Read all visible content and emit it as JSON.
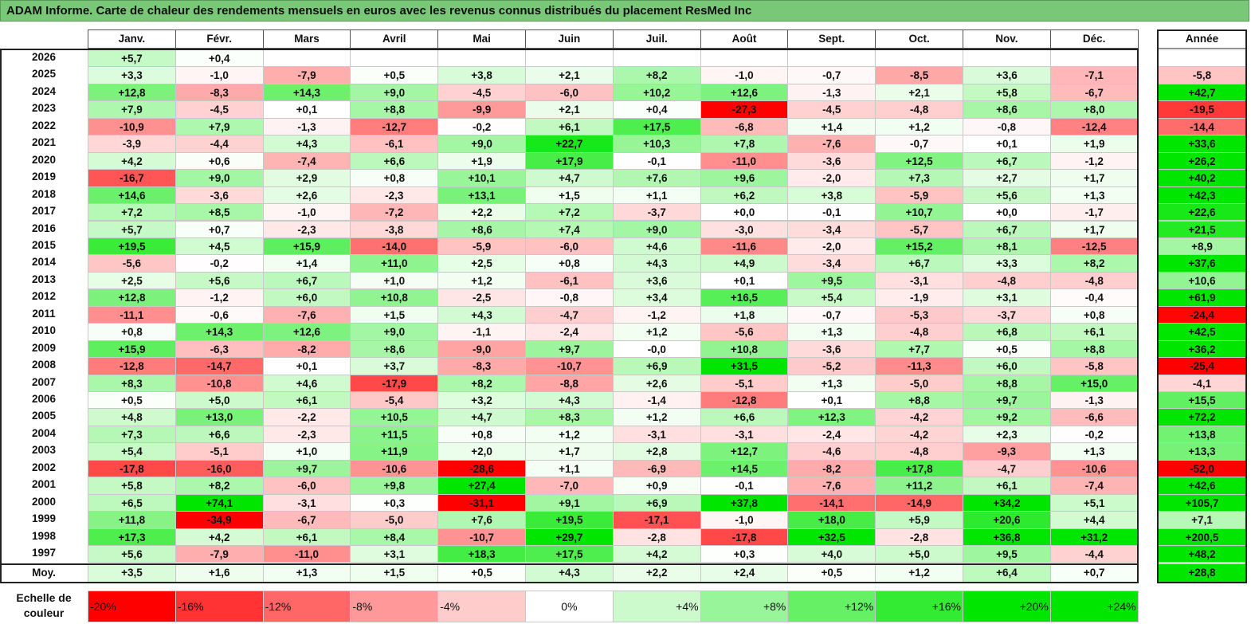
{
  "title": "ADAM Informe. Carte de chaleur des rendements mensuels en euros avec les revenus connus distribués du placement ResMed Inc",
  "chart_data": {
    "type": "heatmap",
    "columns": [
      "Janv.",
      "Févr.",
      "Mars",
      "Avril",
      "Mai",
      "Juin",
      "Juil.",
      "Août",
      "Sept.",
      "Oct.",
      "Nov.",
      "Déc."
    ],
    "year_header": "Année",
    "rows": [
      {
        "label": "2026",
        "months": [
          "+5,7",
          "+0,4",
          "",
          "",
          "",
          "",
          "",
          "",
          "",
          "",
          "",
          ""
        ],
        "year": ""
      },
      {
        "label": "2025",
        "months": [
          "+3,3",
          "-1,0",
          "-7,9",
          "+0,5",
          "+3,8",
          "+2,1",
          "+8,2",
          "-1,0",
          "-0,7",
          "-8,5",
          "+3,6",
          "-7,1"
        ],
        "year": "-5,8"
      },
      {
        "label": "2024",
        "months": [
          "+12,8",
          "-8,3",
          "+14,3",
          "+9,0",
          "-4,5",
          "-6,0",
          "+10,2",
          "+12,6",
          "-1,3",
          "+2,1",
          "+5,8",
          "-6,7"
        ],
        "year": "+42,7"
      },
      {
        "label": "2023",
        "months": [
          "+7,9",
          "-4,5",
          "+0,1",
          "+8,8",
          "-9,9",
          "+2,1",
          "+0,4",
          "-27,3",
          "-4,5",
          "-4,8",
          "+8,6",
          "+8,0"
        ],
        "year": "-19,5"
      },
      {
        "label": "2022",
        "months": [
          "-10,9",
          "+7,9",
          "-1,3",
          "-12,7",
          "-0,2",
          "+6,1",
          "+17,5",
          "-6,8",
          "+1,4",
          "+1,2",
          "-0,8",
          "-12,4"
        ],
        "year": "-14,4"
      },
      {
        "label": "2021",
        "months": [
          "-3,9",
          "-4,4",
          "+4,3",
          "-6,1",
          "+9,0",
          "+22,7",
          "+10,3",
          "+7,8",
          "-7,6",
          "-0,7",
          "+0,1",
          "+1,9"
        ],
        "year": "+33,6"
      },
      {
        "label": "2020",
        "months": [
          "+4,2",
          "+0,6",
          "-7,4",
          "+6,6",
          "+1,9",
          "+17,9",
          "-0,1",
          "-11,0",
          "-3,6",
          "+12,5",
          "+6,7",
          "-1,2"
        ],
        "year": "+26,2"
      },
      {
        "label": "2019",
        "months": [
          "-16,7",
          "+9,0",
          "+2,9",
          "+0,8",
          "+10,1",
          "+4,7",
          "+7,6",
          "+9,6",
          "-2,0",
          "+7,3",
          "+2,7",
          "+1,7"
        ],
        "year": "+40,2"
      },
      {
        "label": "2018",
        "months": [
          "+14,6",
          "-3,6",
          "+2,6",
          "-2,3",
          "+13,1",
          "+1,5",
          "+1,1",
          "+6,2",
          "+3,8",
          "-5,9",
          "+5,6",
          "+1,3"
        ],
        "year": "+42,3"
      },
      {
        "label": "2017",
        "months": [
          "+7,2",
          "+8,5",
          "-1,0",
          "-7,2",
          "+2,2",
          "+7,2",
          "-3,7",
          "+0,0",
          "-0,1",
          "+10,7",
          "+0,0",
          "-1,7"
        ],
        "year": "+22,6"
      },
      {
        "label": "2016",
        "months": [
          "+5,7",
          "+0,7",
          "-2,3",
          "-3,8",
          "+8,6",
          "+7,4",
          "+9,0",
          "-3,0",
          "-3,4",
          "-5,7",
          "+6,7",
          "+1,7"
        ],
        "year": "+21,5"
      },
      {
        "label": "2015",
        "months": [
          "+19,5",
          "+4,5",
          "+15,9",
          "-14,0",
          "-5,9",
          "-6,0",
          "+4,6",
          "-11,6",
          "-2,0",
          "+15,2",
          "+8,1",
          "-12,5"
        ],
        "year": "+8,9"
      },
      {
        "label": "2014",
        "months": [
          "-5,6",
          "-0,2",
          "+1,4",
          "+11,0",
          "+2,5",
          "+0,8",
          "+4,3",
          "+4,9",
          "-3,4",
          "+6,7",
          "+3,3",
          "+8,2"
        ],
        "year": "+37,6"
      },
      {
        "label": "2013",
        "months": [
          "+2,5",
          "+5,6",
          "+6,7",
          "+1,0",
          "+1,2",
          "-6,1",
          "+3,6",
          "+0,1",
          "+9,5",
          "-3,1",
          "-4,8",
          "-4,8"
        ],
        "year": "+10,6"
      },
      {
        "label": "2012",
        "months": [
          "+12,8",
          "-1,2",
          "+6,0",
          "+10,8",
          "-2,5",
          "-0,8",
          "+3,4",
          "+16,5",
          "+5,4",
          "-1,9",
          "+3,1",
          "-0,4"
        ],
        "year": "+61,9"
      },
      {
        "label": "2011",
        "months": [
          "-11,1",
          "-0,6",
          "-7,6",
          "+1,5",
          "+4,3",
          "-4,7",
          "-1,2",
          "+1,8",
          "-0,7",
          "-5,3",
          "-3,7",
          "+0,8"
        ],
        "year": "-24,4"
      },
      {
        "label": "2010",
        "months": [
          "+0,8",
          "+14,3",
          "+12,6",
          "+9,0",
          "-1,1",
          "-2,4",
          "+1,2",
          "-5,6",
          "+1,3",
          "-4,8",
          "+6,8",
          "+6,1"
        ],
        "year": "+42,5"
      },
      {
        "label": "2009",
        "months": [
          "+15,9",
          "-6,3",
          "-8,2",
          "+8,6",
          "-9,0",
          "+9,7",
          "-0,0",
          "+10,8",
          "-3,6",
          "+7,7",
          "+0,5",
          "+8,8"
        ],
        "year": "+36,2"
      },
      {
        "label": "2008",
        "months": [
          "-12,8",
          "-14,7",
          "+0,1",
          "+3,7",
          "-8,3",
          "-10,7",
          "+6,9",
          "+31,5",
          "-5,2",
          "-11,3",
          "+6,0",
          "-5,8"
        ],
        "year": "-25,4"
      },
      {
        "label": "2007",
        "months": [
          "+8,3",
          "-10,8",
          "+4,6",
          "-17,9",
          "+8,2",
          "-8,8",
          "+2,6",
          "-5,1",
          "+1,3",
          "-5,0",
          "+8,8",
          "+15,0"
        ],
        "year": "-4,1"
      },
      {
        "label": "2006",
        "months": [
          "+0,5",
          "+5,0",
          "+6,1",
          "-5,4",
          "+3,2",
          "+4,3",
          "-1,4",
          "-12,8",
          "+0,1",
          "+8,8",
          "+9,7",
          "-1,3"
        ],
        "year": "+15,5"
      },
      {
        "label": "2005",
        "months": [
          "+4,8",
          "+13,0",
          "-2,2",
          "+10,5",
          "+4,7",
          "+8,3",
          "+1,2",
          "+6,6",
          "+12,3",
          "-4,2",
          "+9,2",
          "-6,6"
        ],
        "year": "+72,2"
      },
      {
        "label": "2004",
        "months": [
          "+7,3",
          "+6,6",
          "-2,3",
          "+11,5",
          "+0,8",
          "+1,2",
          "-3,1",
          "-3,1",
          "-2,4",
          "-4,2",
          "+2,3",
          "-0,2"
        ],
        "year": "+13,8"
      },
      {
        "label": "2003",
        "months": [
          "+5,4",
          "-5,1",
          "+1,0",
          "+11,9",
          "+2,0",
          "+1,7",
          "+2,8",
          "+12,7",
          "-4,6",
          "-4,8",
          "-9,3",
          "+1,3"
        ],
        "year": "+13,3"
      },
      {
        "label": "2002",
        "months": [
          "-17,8",
          "-16,0",
          "+9,7",
          "-10,6",
          "-28,6",
          "+1,1",
          "-6,9",
          "+14,5",
          "-8,2",
          "+17,8",
          "-4,7",
          "-10,6"
        ],
        "year": "-52,0"
      },
      {
        "label": "2001",
        "months": [
          "+5,8",
          "+8,2",
          "-6,0",
          "+9,8",
          "+27,4",
          "-7,0",
          "+0,9",
          "-0,1",
          "-7,6",
          "+11,2",
          "+6,1",
          "-7,4"
        ],
        "year": "+42,6"
      },
      {
        "label": "2000",
        "months": [
          "+6,5",
          "+74,1",
          "-3,1",
          "+0,3",
          "-31,1",
          "+9,1",
          "+6,9",
          "+37,8",
          "-14,1",
          "-14,9",
          "+34,2",
          "+5,1"
        ],
        "year": "+105,7"
      },
      {
        "label": "1999",
        "months": [
          "+11,8",
          "-34,9",
          "-6,7",
          "-5,0",
          "+7,6",
          "+19,5",
          "-17,1",
          "-1,0",
          "+18,0",
          "+5,9",
          "+20,6",
          "+4,4"
        ],
        "year": "+7,1"
      },
      {
        "label": "1998",
        "months": [
          "+17,3",
          "+4,2",
          "+6,1",
          "+8,4",
          "-10,7",
          "+29,7",
          "-2,8",
          "-17,8",
          "+32,5",
          "-2,8",
          "+36,8",
          "+31,2"
        ],
        "year": "+200,5"
      },
      {
        "label": "1997",
        "months": [
          "+5,6",
          "-7,9",
          "-11,0",
          "+3,1",
          "+18,3",
          "+17,5",
          "+4,2",
          "+0,3",
          "+4,0",
          "+5,0",
          "+9,5",
          "-4,4"
        ],
        "year": "+48,2"
      }
    ],
    "average": {
      "label": "Moy.",
      "months": [
        "+3,5",
        "+1,6",
        "+1,3",
        "+1,5",
        "+0,5",
        "+4,3",
        "+2,2",
        "+2,4",
        "+0,5",
        "+1,2",
        "+6,4",
        "+0,7"
      ],
      "year": "+28,8"
    },
    "color_scale": {
      "label_line1": "Echelle de",
      "label_line2": "couleur",
      "stops": [
        "-20%",
        "-16%",
        "-12%",
        "-8%",
        "-4%",
        "0%",
        "+4%",
        "+8%",
        "+12%",
        "+16%",
        "+20%",
        "+24%"
      ],
      "stop_values": [
        -20,
        -16,
        -12,
        -8,
        -4,
        0,
        4,
        8,
        12,
        16,
        20,
        24
      ]
    },
    "colors": {
      "negative_max": "#ff0000",
      "neutral": "#ffffff",
      "positive_max": "#00e600",
      "title_bg": "#78c878"
    }
  }
}
